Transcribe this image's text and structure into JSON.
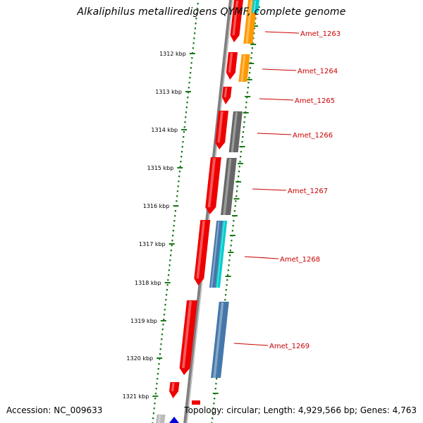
{
  "title": "Alkaliphilus metalliredigens QYMF, complete genome",
  "footer": {
    "accession": "Accession: NC_009633",
    "info": "Topology: circular; Length: 4,929,566 bp; Genes: 4,763"
  },
  "colors": {
    "background": "#ffffff",
    "backbone": "#808080",
    "tick_dots": "#1a7a1a",
    "tick_dash": "#1a7a1a",
    "label_text": "#cc0000",
    "label_line": "#cc0000",
    "gene_red": "#ee0000",
    "gene_orange": "#ff9900",
    "gene_gray": "#666666",
    "gene_cyan": "#00cccc",
    "gene_steelblue": "#4477aa",
    "gene_blue": "#0000dd",
    "gene_lightgray": "#bbbbbb"
  },
  "scale": {
    "unit": "kbp",
    "ticks": [
      "1312 kbp",
      "1313 kbp",
      "1314 kbp",
      "1315 kbp",
      "1316 kbp",
      "1317 kbp",
      "1318 kbp",
      "1319 kbp",
      "1320 kbp",
      "1321 kbp"
    ]
  },
  "genes": [
    {
      "label": "Amet_1263"
    },
    {
      "label": "Amet_1264"
    },
    {
      "label": "Amet_1265"
    },
    {
      "label": "Amet_1266"
    },
    {
      "label": "Amet_1267"
    },
    {
      "label": "Amet_1268"
    },
    {
      "label": "Amet_1269"
    }
  ]
}
